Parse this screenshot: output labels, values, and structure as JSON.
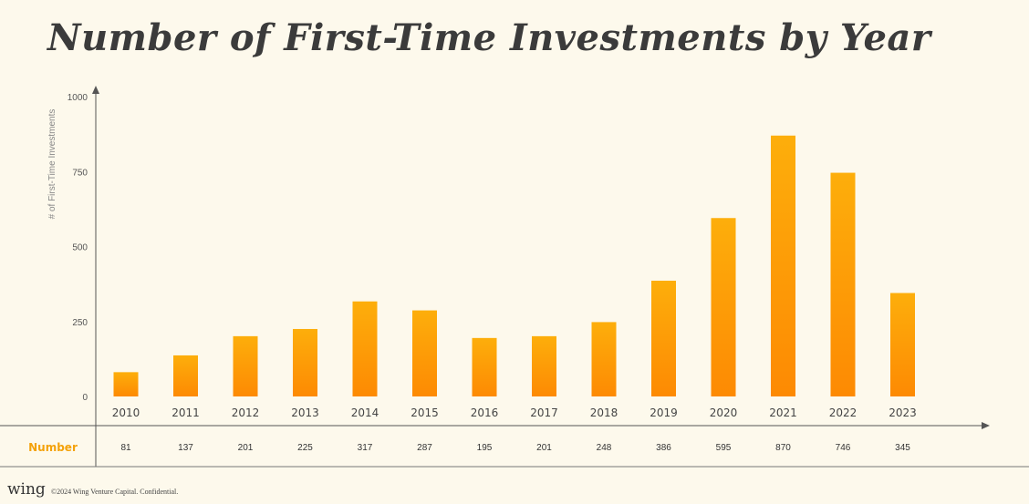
{
  "chart_data": {
    "type": "bar",
    "title": "Number of First-Time Investments by Year",
    "ylabel": "# of First-Time Investments",
    "ylim": [
      0,
      1000
    ],
    "yticks": [
      "1000",
      "750",
      "500",
      "250",
      "0"
    ],
    "categories": [
      "2010",
      "2011",
      "2012",
      "2013",
      "2014",
      "2015",
      "2016",
      "2017",
      "2018",
      "2019",
      "2020",
      "2021",
      "2022",
      "2023"
    ],
    "values": [
      81,
      137,
      201,
      225,
      317,
      287,
      195,
      201,
      248,
      386,
      595,
      870,
      746,
      345
    ],
    "table_row_label": "Number",
    "table_values": [
      "81",
      "137",
      "201",
      "225",
      "317",
      "287",
      "195",
      "201",
      "248",
      "386",
      "595",
      "870",
      "746",
      "345"
    ],
    "bar_color_top": "#fdae0b",
    "bar_color_bottom": "#fd8a03",
    "accent": "#f4a20a"
  },
  "footer": {
    "logo": "wing",
    "text": "©2024 Wing Venture Capital. Confidential."
  }
}
